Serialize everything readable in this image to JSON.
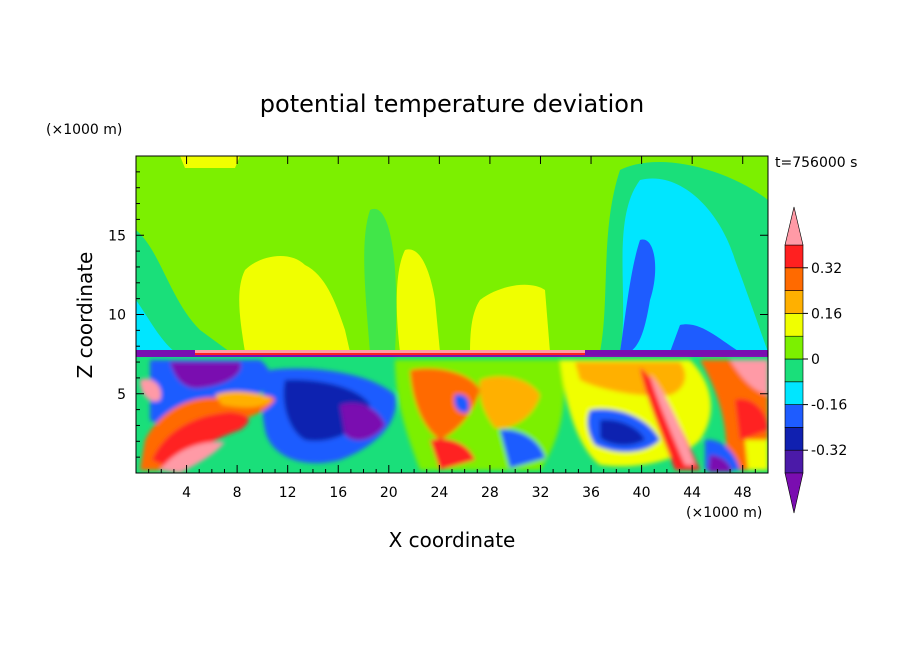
{
  "chart_data": {
    "type": "heatmap",
    "title": "potential temperature deviation",
    "xlabel": "X coordinate",
    "ylabel": "Z coordinate",
    "x_unit": "(×1000 m)",
    "y_unit": "(×1000 m)",
    "time_label": "t=756000 s",
    "xlim": [
      0,
      50
    ],
    "ylim": [
      0,
      20
    ],
    "x_ticks": [
      4,
      8,
      12,
      16,
      20,
      24,
      28,
      32,
      36,
      40,
      44,
      48
    ],
    "y_ticks": [
      5,
      10,
      15
    ],
    "colorbar": {
      "levels": [
        -0.4,
        -0.32,
        -0.24,
        -0.16,
        -0.08,
        0,
        0.08,
        0.16,
        0.24,
        0.32,
        0.4
      ],
      "tick_labels": [
        "0.32",
        "0.16",
        "0",
        "-0.16",
        "-0.32"
      ],
      "tick_values": [
        0.32,
        0.16,
        0,
        -0.16,
        -0.32
      ],
      "colors": [
        "#7a0db0",
        "#4b1aa8",
        "#1020b0",
        "#1e5cff",
        "#00e6ff",
        "#1adf7a",
        "#7cf000",
        "#f0ff00",
        "#ffb000",
        "#ff6a00",
        "#ff2020",
        "#ff9aa6"
      ],
      "extend": "both"
    },
    "grid": false
  }
}
